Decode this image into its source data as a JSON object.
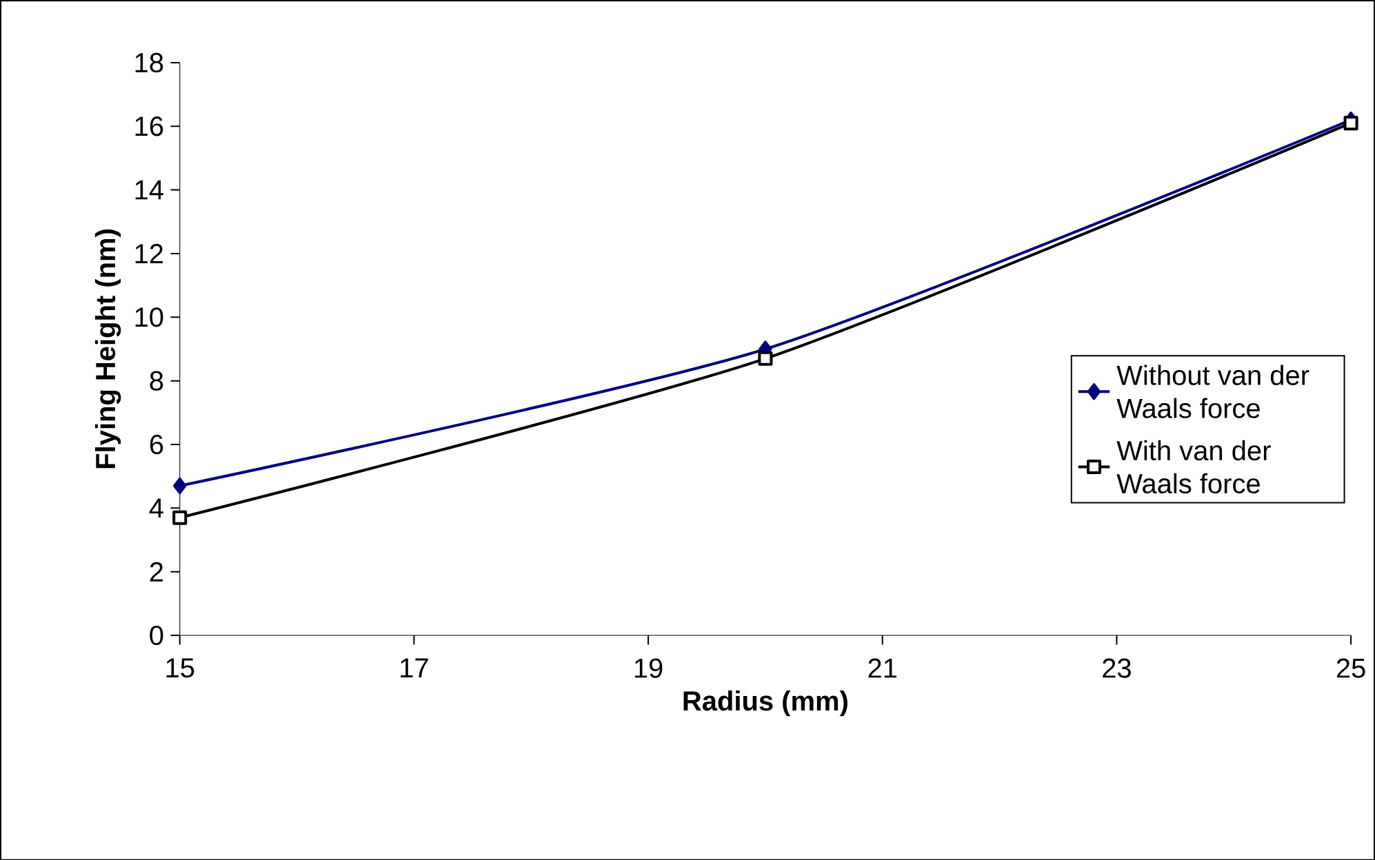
{
  "chart_data": {
    "type": "line",
    "xlabel": "Radius (mm)",
    "ylabel": "Flying Height (nm)",
    "x": [
      15,
      20,
      25
    ],
    "series": [
      {
        "name": "Without van der Waals force",
        "color": "#000080",
        "values": [
          4.7,
          9.0,
          16.2
        ],
        "marker": "diamond"
      },
      {
        "name": "With van der Waals force",
        "color": "#000000",
        "values": [
          3.7,
          8.7,
          16.1
        ],
        "marker": "square"
      }
    ],
    "xlim": [
      15,
      25
    ],
    "xticks": [
      15,
      17,
      19,
      21,
      23,
      25
    ],
    "ylim": [
      0,
      18
    ],
    "yticks": [
      0,
      2,
      4,
      6,
      8,
      10,
      12,
      14,
      16,
      18
    ],
    "grid": false,
    "legend": "right",
    "line_style": "solid"
  }
}
